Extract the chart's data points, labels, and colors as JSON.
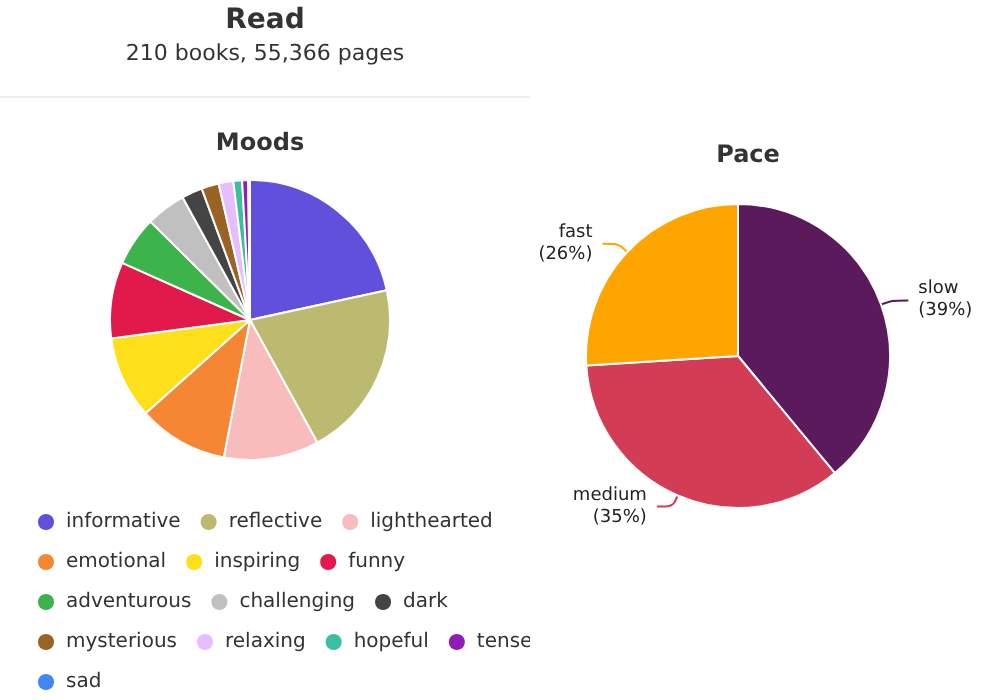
{
  "chart_data": [
    {
      "type": "other",
      "title": "Read",
      "subtitle": "210 books, 55,366 pages"
    },
    {
      "type": "pie",
      "title": "Moods",
      "legend": "bottom",
      "categories": [
        "informative",
        "reflective",
        "lighthearted",
        "emotional",
        "inspiring",
        "funny",
        "adventurous",
        "challenging",
        "dark",
        "mysterious",
        "relaxing",
        "hopeful",
        "tense",
        "sad"
      ],
      "values": [
        21.6,
        20.4,
        11,
        10.4,
        9.5,
        8.8,
        5.7,
        4.6,
        2.4,
        2.0,
        1.7,
        1.0,
        0.7,
        0.2
      ],
      "colors": [
        "#6050dc",
        "#bcb970",
        "#f9bcbc",
        "#f58634",
        "#fde01a",
        "#e2194b",
        "#3cb44b",
        "#c0c0c0",
        "#444444",
        "#9a6324",
        "#e6beff",
        "#3bbfa0",
        "#911eb4",
        "#4287f5"
      ]
    },
    {
      "type": "pie",
      "title": "Pace",
      "legend": false,
      "categories": [
        "slow",
        "medium",
        "fast"
      ],
      "values": [
        39,
        35,
        26
      ],
      "value_labels": [
        "(39%)",
        "(35%)",
        "(26%)"
      ],
      "colors": [
        "#5a1a5c",
        "#d23c55",
        "#ffa500"
      ]
    }
  ]
}
